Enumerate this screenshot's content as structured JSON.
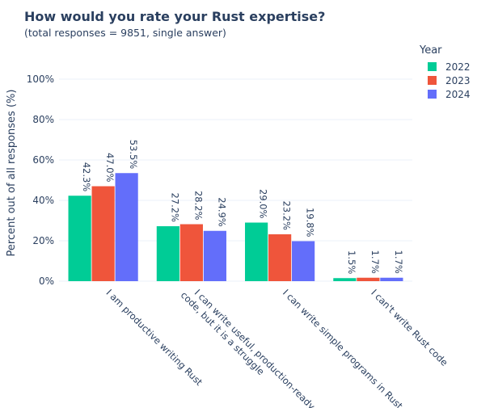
{
  "chart_data": {
    "type": "bar",
    "title": "How would you rate your Rust expertise?",
    "subtitle": "(total responses = 9851, single answer)",
    "xlabel": "",
    "ylabel": "Percent out of all responses (%)",
    "ylim": [
      0,
      100
    ],
    "yticks": [
      0,
      20,
      40,
      60,
      80,
      100
    ],
    "ytick_labels": [
      "0%",
      "20%",
      "40%",
      "60%",
      "80%",
      "100%"
    ],
    "grid": true,
    "legend_title": "Year",
    "legend_position": "top-right",
    "categories": [
      [
        "I am productive writing Rust"
      ],
      [
        "I can write useful, production-ready",
        "code, but it is a struggle"
      ],
      [
        "I can write simple programs in Rust"
      ],
      [
        "I can't write Rust code"
      ]
    ],
    "series": [
      {
        "name": "2022",
        "color": "#00cc96",
        "values": [
          42.3,
          27.2,
          29.0,
          1.5
        ],
        "labels": [
          "42.3%",
          "27.2%",
          "29.0%",
          "1.5%"
        ]
      },
      {
        "name": "2023",
        "color": "#ef553b",
        "values": [
          47.0,
          28.2,
          23.2,
          1.7
        ],
        "labels": [
          "47.0%",
          "28.2%",
          "23.2%",
          "1.7%"
        ]
      },
      {
        "name": "2024",
        "color": "#636efa",
        "values": [
          53.5,
          24.9,
          19.8,
          1.7
        ],
        "labels": [
          "53.5%",
          "24.9%",
          "19.8%",
          "1.7%"
        ]
      }
    ]
  }
}
